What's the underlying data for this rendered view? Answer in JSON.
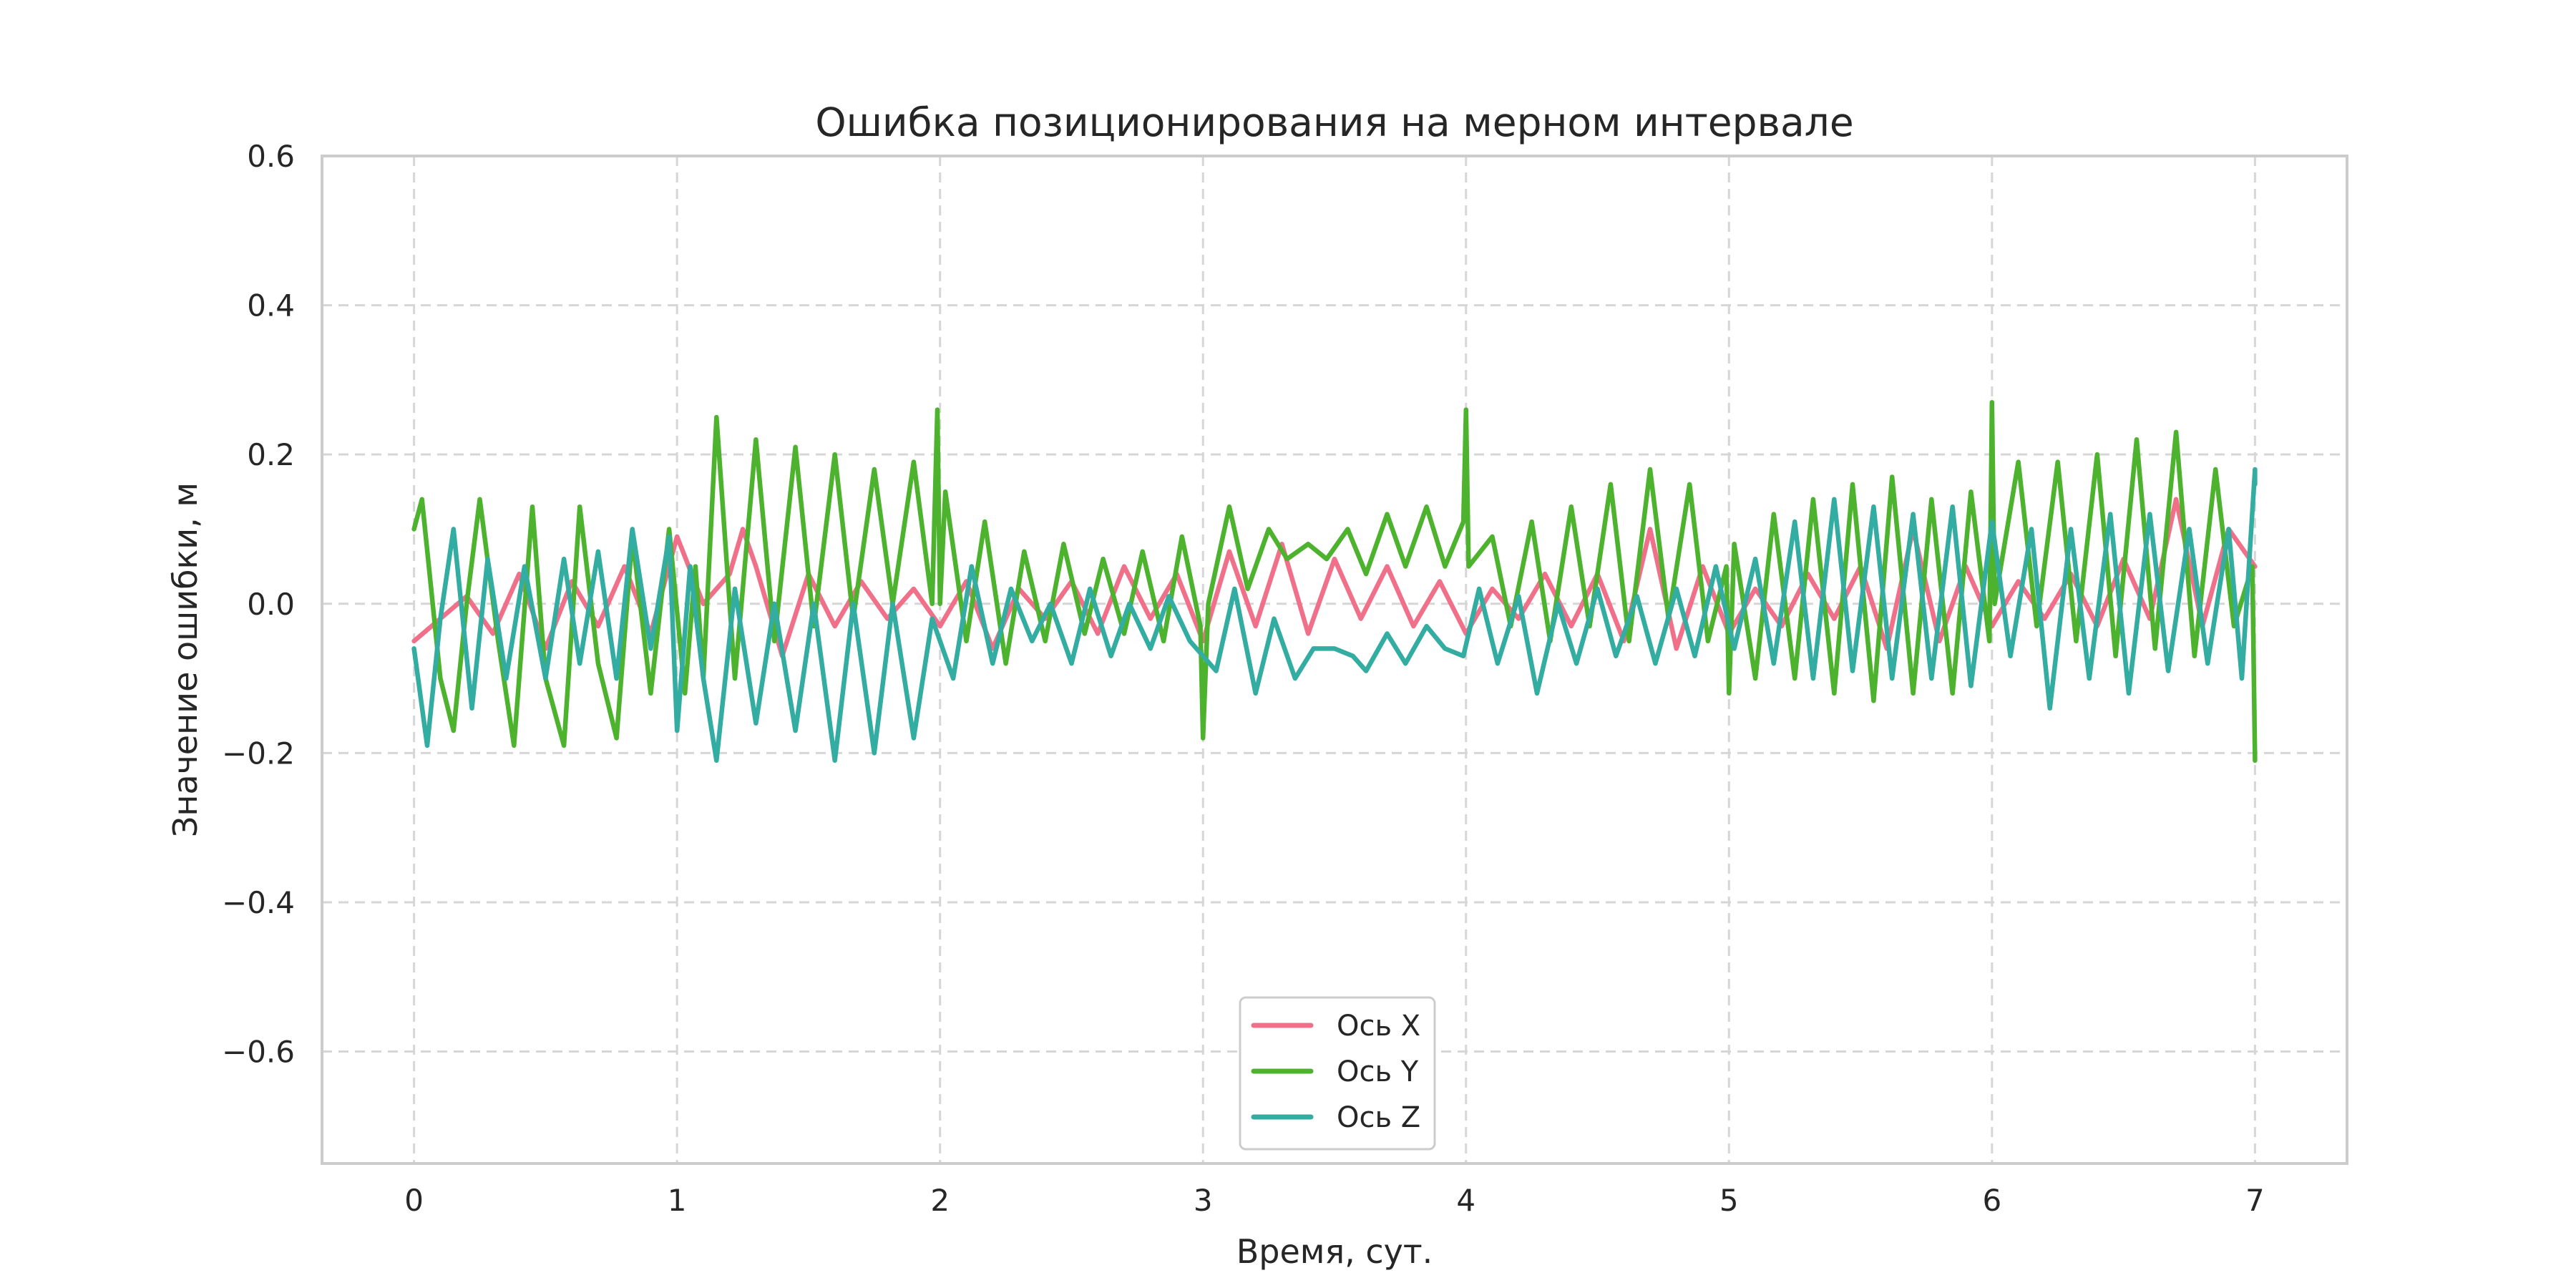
{
  "chart_data": {
    "type": "line",
    "title": "Ошибка позиционирования на мерном интервале",
    "xlabel": "Время, сут.",
    "ylabel": "Значение ошибки, м",
    "xlim": [
      -0.35,
      7.35
    ],
    "ylim": [
      -0.75,
      0.6
    ],
    "x_ticks": [
      0,
      1,
      2,
      3,
      4,
      5,
      6,
      7
    ],
    "x_tick_labels": [
      "0",
      "1",
      "2",
      "3",
      "4",
      "5",
      "6",
      "7"
    ],
    "y_ticks": [
      0.6,
      0.4,
      0.2,
      0.0,
      -0.2,
      -0.4,
      -0.6
    ],
    "y_tick_labels": [
      "0.6",
      "0.4",
      "0.2",
      "0.0",
      "−0.2",
      "−0.4",
      "−0.6"
    ],
    "grid": true,
    "legend_position": "bottom-center",
    "series": [
      {
        "name": "Ось X",
        "color": "#f0708a",
        "points": [
          [
            0.0,
            -0.05
          ],
          [
            0.1,
            -0.02
          ],
          [
            0.2,
            0.01
          ],
          [
            0.3,
            -0.04
          ],
          [
            0.4,
            0.04
          ],
          [
            0.5,
            -0.06
          ],
          [
            0.6,
            0.03
          ],
          [
            0.7,
            -0.03
          ],
          [
            0.8,
            0.05
          ],
          [
            0.9,
            -0.04
          ],
          [
            1.0,
            0.09
          ],
          [
            1.1,
            0.0
          ],
          [
            1.2,
            0.04
          ],
          [
            1.25,
            0.1
          ],
          [
            1.3,
            0.05
          ],
          [
            1.4,
            -0.07
          ],
          [
            1.5,
            0.04
          ],
          [
            1.6,
            -0.03
          ],
          [
            1.7,
            0.03
          ],
          [
            1.8,
            -0.02
          ],
          [
            1.9,
            0.02
          ],
          [
            2.0,
            -0.03
          ],
          [
            2.1,
            0.03
          ],
          [
            2.2,
            -0.06
          ],
          [
            2.3,
            0.02
          ],
          [
            2.4,
            -0.02
          ],
          [
            2.5,
            0.03
          ],
          [
            2.6,
            -0.04
          ],
          [
            2.7,
            0.05
          ],
          [
            2.8,
            -0.02
          ],
          [
            2.9,
            0.04
          ],
          [
            3.0,
            -0.05
          ],
          [
            3.1,
            0.07
          ],
          [
            3.2,
            -0.03
          ],
          [
            3.3,
            0.08
          ],
          [
            3.4,
            -0.04
          ],
          [
            3.5,
            0.06
          ],
          [
            3.6,
            -0.02
          ],
          [
            3.7,
            0.05
          ],
          [
            3.8,
            -0.03
          ],
          [
            3.9,
            0.03
          ],
          [
            4.0,
            -0.04
          ],
          [
            4.1,
            0.02
          ],
          [
            4.2,
            -0.02
          ],
          [
            4.3,
            0.04
          ],
          [
            4.4,
            -0.03
          ],
          [
            4.5,
            0.04
          ],
          [
            4.6,
            -0.05
          ],
          [
            4.7,
            0.1
          ],
          [
            4.8,
            -0.06
          ],
          [
            4.9,
            0.05
          ],
          [
            5.0,
            -0.04
          ],
          [
            5.1,
            0.02
          ],
          [
            5.2,
            -0.03
          ],
          [
            5.3,
            0.04
          ],
          [
            5.4,
            -0.02
          ],
          [
            5.5,
            0.05
          ],
          [
            5.6,
            -0.06
          ],
          [
            5.7,
            0.1
          ],
          [
            5.8,
            -0.05
          ],
          [
            5.9,
            0.05
          ],
          [
            6.0,
            -0.03
          ],
          [
            6.1,
            0.03
          ],
          [
            6.2,
            -0.02
          ],
          [
            6.3,
            0.04
          ],
          [
            6.4,
            -0.03
          ],
          [
            6.5,
            0.06
          ],
          [
            6.6,
            -0.02
          ],
          [
            6.7,
            0.14
          ],
          [
            6.8,
            -0.03
          ],
          [
            6.9,
            0.1
          ],
          [
            7.0,
            0.05
          ]
        ]
      },
      {
        "name": "Ось Y",
        "color": "#4db32e",
        "points": [
          [
            0.0,
            0.1
          ],
          [
            0.03,
            0.14
          ],
          [
            0.1,
            -0.1
          ],
          [
            0.15,
            -0.17
          ],
          [
            0.2,
            0.0
          ],
          [
            0.25,
            0.14
          ],
          [
            0.32,
            -0.05
          ],
          [
            0.38,
            -0.19
          ],
          [
            0.45,
            0.13
          ],
          [
            0.5,
            -0.1
          ],
          [
            0.57,
            -0.19
          ],
          [
            0.63,
            0.13
          ],
          [
            0.7,
            -0.08
          ],
          [
            0.77,
            -0.18
          ],
          [
            0.83,
            0.09
          ],
          [
            0.9,
            -0.12
          ],
          [
            0.97,
            0.1
          ],
          [
            1.03,
            -0.12
          ],
          [
            1.07,
            0.05
          ],
          [
            1.1,
            -0.1
          ],
          [
            1.15,
            0.25
          ],
          [
            1.22,
            -0.1
          ],
          [
            1.3,
            0.22
          ],
          [
            1.37,
            -0.05
          ],
          [
            1.45,
            0.21
          ],
          [
            1.52,
            -0.03
          ],
          [
            1.6,
            0.2
          ],
          [
            1.67,
            -0.02
          ],
          [
            1.75,
            0.18
          ],
          [
            1.82,
            0.0
          ],
          [
            1.9,
            0.19
          ],
          [
            1.97,
            0.0
          ],
          [
            1.99,
            0.26
          ],
          [
            2.0,
            0.0
          ],
          [
            2.02,
            0.15
          ],
          [
            2.1,
            -0.05
          ],
          [
            2.17,
            0.11
          ],
          [
            2.25,
            -0.08
          ],
          [
            2.32,
            0.07
          ],
          [
            2.4,
            -0.05
          ],
          [
            2.47,
            0.08
          ],
          [
            2.55,
            -0.04
          ],
          [
            2.62,
            0.06
          ],
          [
            2.7,
            -0.04
          ],
          [
            2.77,
            0.07
          ],
          [
            2.85,
            -0.05
          ],
          [
            2.92,
            0.09
          ],
          [
            2.99,
            -0.03
          ],
          [
            3.0,
            -0.18
          ],
          [
            3.02,
            0.0
          ],
          [
            3.1,
            0.13
          ],
          [
            3.17,
            0.02
          ],
          [
            3.25,
            0.1
          ],
          [
            3.32,
            0.06
          ],
          [
            3.4,
            0.08
          ],
          [
            3.47,
            0.06
          ],
          [
            3.55,
            0.1
          ],
          [
            3.62,
            0.04
          ],
          [
            3.7,
            0.12
          ],
          [
            3.77,
            0.05
          ],
          [
            3.85,
            0.13
          ],
          [
            3.92,
            0.05
          ],
          [
            3.99,
            0.11
          ],
          [
            4.0,
            0.26
          ],
          [
            4.01,
            0.05
          ],
          [
            4.1,
            0.09
          ],
          [
            4.17,
            -0.03
          ],
          [
            4.25,
            0.11
          ],
          [
            4.32,
            -0.05
          ],
          [
            4.4,
            0.13
          ],
          [
            4.47,
            -0.03
          ],
          [
            4.55,
            0.16
          ],
          [
            4.62,
            -0.05
          ],
          [
            4.7,
            0.18
          ],
          [
            4.77,
            -0.02
          ],
          [
            4.85,
            0.16
          ],
          [
            4.92,
            -0.05
          ],
          [
            4.99,
            0.05
          ],
          [
            5.0,
            -0.12
          ],
          [
            5.02,
            0.08
          ],
          [
            5.1,
            -0.1
          ],
          [
            5.17,
            0.12
          ],
          [
            5.25,
            -0.1
          ],
          [
            5.32,
            0.14
          ],
          [
            5.4,
            -0.12
          ],
          [
            5.47,
            0.16
          ],
          [
            5.55,
            -0.13
          ],
          [
            5.62,
            0.17
          ],
          [
            5.7,
            -0.12
          ],
          [
            5.77,
            0.14
          ],
          [
            5.85,
            -0.12
          ],
          [
            5.92,
            0.15
          ],
          [
            5.99,
            -0.05
          ],
          [
            6.0,
            0.27
          ],
          [
            6.01,
            0.0
          ],
          [
            6.1,
            0.19
          ],
          [
            6.17,
            -0.03
          ],
          [
            6.25,
            0.19
          ],
          [
            6.32,
            -0.05
          ],
          [
            6.4,
            0.2
          ],
          [
            6.47,
            -0.07
          ],
          [
            6.55,
            0.22
          ],
          [
            6.62,
            -0.06
          ],
          [
            6.7,
            0.23
          ],
          [
            6.77,
            -0.07
          ],
          [
            6.85,
            0.18
          ],
          [
            6.92,
            -0.03
          ],
          [
            6.99,
            0.05
          ],
          [
            7.0,
            -0.21
          ]
        ]
      },
      {
        "name": "Ось Z",
        "color": "#33aca1",
        "points": [
          [
            0.0,
            -0.06
          ],
          [
            0.05,
            -0.19
          ],
          [
            0.1,
            -0.02
          ],
          [
            0.15,
            0.1
          ],
          [
            0.22,
            -0.14
          ],
          [
            0.28,
            0.06
          ],
          [
            0.35,
            -0.1
          ],
          [
            0.42,
            0.05
          ],
          [
            0.5,
            -0.1
          ],
          [
            0.57,
            0.06
          ],
          [
            0.63,
            -0.08
          ],
          [
            0.7,
            0.07
          ],
          [
            0.77,
            -0.1
          ],
          [
            0.83,
            0.1
          ],
          [
            0.9,
            -0.06
          ],
          [
            0.97,
            0.09
          ],
          [
            1.0,
            -0.17
          ],
          [
            1.05,
            0.05
          ],
          [
            1.1,
            -0.1
          ],
          [
            1.15,
            -0.21
          ],
          [
            1.22,
            0.02
          ],
          [
            1.3,
            -0.16
          ],
          [
            1.37,
            0.0
          ],
          [
            1.45,
            -0.17
          ],
          [
            1.52,
            0.0
          ],
          [
            1.6,
            -0.21
          ],
          [
            1.67,
            0.0
          ],
          [
            1.75,
            -0.2
          ],
          [
            1.82,
            0.0
          ],
          [
            1.9,
            -0.18
          ],
          [
            1.97,
            -0.02
          ],
          [
            2.05,
            -0.1
          ],
          [
            2.12,
            0.05
          ],
          [
            2.2,
            -0.08
          ],
          [
            2.27,
            0.02
          ],
          [
            2.35,
            -0.05
          ],
          [
            2.42,
            0.0
          ],
          [
            2.5,
            -0.08
          ],
          [
            2.57,
            0.02
          ],
          [
            2.65,
            -0.07
          ],
          [
            2.72,
            0.0
          ],
          [
            2.8,
            -0.06
          ],
          [
            2.87,
            0.01
          ],
          [
            2.95,
            -0.05
          ],
          [
            3.05,
            -0.09
          ],
          [
            3.12,
            0.02
          ],
          [
            3.2,
            -0.12
          ],
          [
            3.27,
            -0.02
          ],
          [
            3.35,
            -0.1
          ],
          [
            3.42,
            -0.06
          ],
          [
            3.5,
            -0.06
          ],
          [
            3.57,
            -0.07
          ],
          [
            3.62,
            -0.09
          ],
          [
            3.7,
            -0.04
          ],
          [
            3.77,
            -0.08
          ],
          [
            3.85,
            -0.03
          ],
          [
            3.92,
            -0.06
          ],
          [
            3.99,
            -0.07
          ],
          [
            4.05,
            0.02
          ],
          [
            4.12,
            -0.08
          ],
          [
            4.2,
            0.01
          ],
          [
            4.27,
            -0.12
          ],
          [
            4.35,
            0.0
          ],
          [
            4.42,
            -0.08
          ],
          [
            4.5,
            0.02
          ],
          [
            4.57,
            -0.07
          ],
          [
            4.65,
            0.01
          ],
          [
            4.72,
            -0.08
          ],
          [
            4.8,
            0.02
          ],
          [
            4.87,
            -0.07
          ],
          [
            4.95,
            0.05
          ],
          [
            5.02,
            -0.06
          ],
          [
            5.1,
            0.06
          ],
          [
            5.17,
            -0.08
          ],
          [
            5.25,
            0.11
          ],
          [
            5.32,
            -0.1
          ],
          [
            5.4,
            0.14
          ],
          [
            5.47,
            -0.09
          ],
          [
            5.55,
            0.13
          ],
          [
            5.62,
            -0.1
          ],
          [
            5.7,
            0.12
          ],
          [
            5.77,
            -0.1
          ],
          [
            5.85,
            0.13
          ],
          [
            5.92,
            -0.11
          ],
          [
            6.0,
            0.11
          ],
          [
            6.07,
            -0.07
          ],
          [
            6.15,
            0.1
          ],
          [
            6.22,
            -0.14
          ],
          [
            6.3,
            0.1
          ],
          [
            6.37,
            -0.1
          ],
          [
            6.45,
            0.12
          ],
          [
            6.52,
            -0.12
          ],
          [
            6.6,
            0.12
          ],
          [
            6.67,
            -0.09
          ],
          [
            6.75,
            0.1
          ],
          [
            6.82,
            -0.08
          ],
          [
            6.9,
            0.1
          ],
          [
            6.95,
            -0.1
          ],
          [
            7.0,
            0.18
          ],
          [
            7.0,
            0.16
          ]
        ]
      }
    ]
  }
}
